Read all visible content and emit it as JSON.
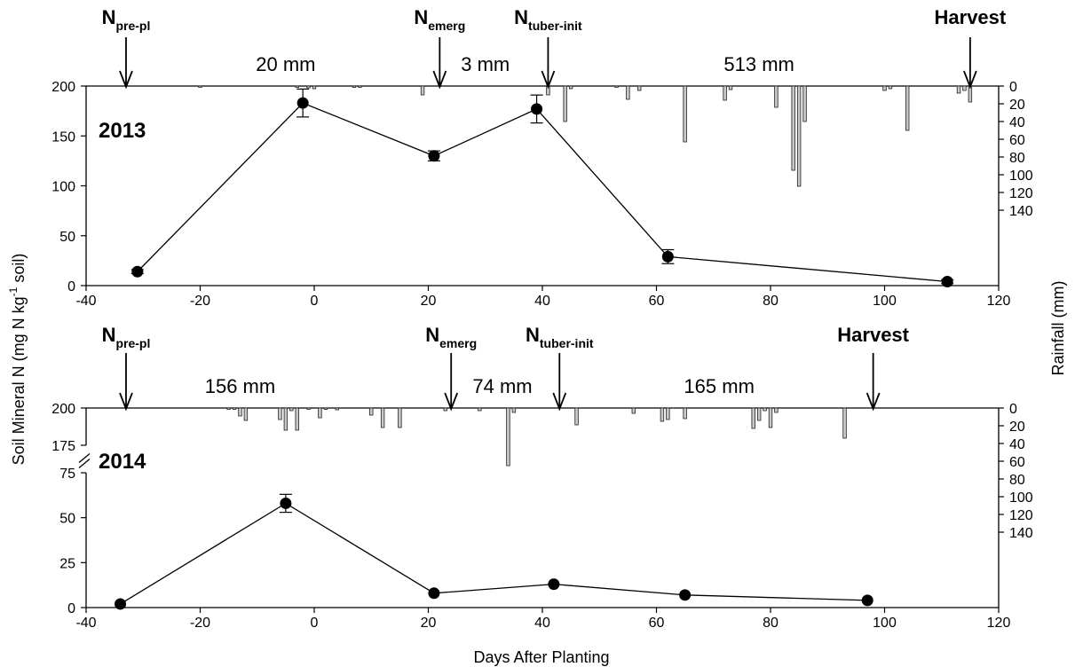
{
  "chart_data": {
    "type": "line",
    "xlabel": "Days After Planting",
    "ylabel_left": "Soil Mineral N (mg N kg-1 soil)",
    "ylabel_left_parts": [
      "Soil Mineral N (mg N kg",
      "-1",
      " soil)"
    ],
    "ylabel_right": "Rainfall (mm)",
    "x_ticks": [
      "-40",
      "-20",
      "0",
      "20",
      "40",
      "60",
      "80",
      "100",
      "120"
    ],
    "xlim": [
      -40,
      120
    ],
    "panels": [
      {
        "year": "2013",
        "ylim": [
          0,
          200
        ],
        "y_ticks": [
          "0",
          "50",
          "100",
          "150",
          "200"
        ],
        "rain_ylim": [
          0,
          150
        ],
        "rain_ticks": [
          "0",
          "20",
          "40",
          "60",
          "80",
          "100",
          "120",
          "140"
        ],
        "soil_n": [
          {
            "x": -31,
            "y": 14,
            "err": 2
          },
          {
            "x": -2,
            "y": 183,
            "err": 14
          },
          {
            "x": 21,
            "y": 130,
            "err": 5
          },
          {
            "x": 39,
            "y": 177,
            "err": 14
          },
          {
            "x": 62,
            "y": 29,
            "err": 7
          },
          {
            "x": 111,
            "y": 4,
            "err": 2
          }
        ],
        "rainfall": [
          {
            "x": -20,
            "mm": 1
          },
          {
            "x": -3,
            "mm": 1
          },
          {
            "x": -1,
            "mm": 2
          },
          {
            "x": 0,
            "mm": 3
          },
          {
            "x": 7,
            "mm": 1
          },
          {
            "x": 8,
            "mm": 1
          },
          {
            "x": 19,
            "mm": 10
          },
          {
            "x": 41,
            "mm": 10
          },
          {
            "x": 44,
            "mm": 40
          },
          {
            "x": 45,
            "mm": 3
          },
          {
            "x": 53,
            "mm": 1
          },
          {
            "x": 55,
            "mm": 15
          },
          {
            "x": 57,
            "mm": 5
          },
          {
            "x": 65,
            "mm": 63
          },
          {
            "x": 72,
            "mm": 16
          },
          {
            "x": 73,
            "mm": 4
          },
          {
            "x": 81,
            "mm": 24
          },
          {
            "x": 84,
            "mm": 95
          },
          {
            "x": 85,
            "mm": 113
          },
          {
            "x": 86,
            "mm": 40
          },
          {
            "x": 100,
            "mm": 5
          },
          {
            "x": 101,
            "mm": 3
          },
          {
            "x": 104,
            "mm": 50
          },
          {
            "x": 113,
            "mm": 8
          },
          {
            "x": 114,
            "mm": 5
          },
          {
            "x": 115,
            "mm": 18
          }
        ],
        "events": [
          {
            "base": "N",
            "sub": "pre-pl",
            "x": -33
          },
          {
            "base": "N",
            "sub": "emerg",
            "x": 22
          },
          {
            "base": "N",
            "sub": "tuber-init",
            "x": 41
          },
          {
            "base": "Harvest",
            "sub": "",
            "x": 115
          }
        ],
        "rain_totals": [
          {
            "label": "20 mm",
            "x": -5
          },
          {
            "label": "3 mm",
            "x": 30
          },
          {
            "label": "513 mm",
            "x": 78
          }
        ]
      },
      {
        "year": "2014",
        "ylim": [
          0,
          200
        ],
        "axis_break": [
          75,
          175
        ],
        "y_ticks": [
          "0",
          "25",
          "50",
          "75",
          "175",
          "200"
        ],
        "rain_ylim": [
          0,
          150
        ],
        "rain_ticks": [
          "0",
          "20",
          "40",
          "60",
          "80",
          "100",
          "120",
          "140"
        ],
        "soil_n": [
          {
            "x": -34,
            "y": 2,
            "err": 1
          },
          {
            "x": -5,
            "y": 58,
            "err": 5
          },
          {
            "x": 21,
            "y": 8,
            "err": 1
          },
          {
            "x": 42,
            "y": 13,
            "err": 1
          },
          {
            "x": 65,
            "y": 7,
            "err": 1
          },
          {
            "x": 97,
            "y": 4,
            "err": 1
          }
        ],
        "rainfall": [
          {
            "x": -15,
            "mm": 1
          },
          {
            "x": -14,
            "mm": 1
          },
          {
            "x": -13,
            "mm": 9
          },
          {
            "x": -12,
            "mm": 14
          },
          {
            "x": -6,
            "mm": 13
          },
          {
            "x": -5,
            "mm": 25
          },
          {
            "x": -4,
            "mm": 3
          },
          {
            "x": -3,
            "mm": 25
          },
          {
            "x": -1,
            "mm": 1
          },
          {
            "x": 1,
            "mm": 11
          },
          {
            "x": 2,
            "mm": 1
          },
          {
            "x": 4,
            "mm": 2
          },
          {
            "x": 10,
            "mm": 8
          },
          {
            "x": 12,
            "mm": 22
          },
          {
            "x": 15,
            "mm": 22
          },
          {
            "x": 23,
            "mm": 3
          },
          {
            "x": 29,
            "mm": 3
          },
          {
            "x": 34,
            "mm": 65
          },
          {
            "x": 35,
            "mm": 5
          },
          {
            "x": 46,
            "mm": 19
          },
          {
            "x": 56,
            "mm": 6
          },
          {
            "x": 61,
            "mm": 15
          },
          {
            "x": 62,
            "mm": 13
          },
          {
            "x": 65,
            "mm": 12
          },
          {
            "x": 77,
            "mm": 23
          },
          {
            "x": 78,
            "mm": 14
          },
          {
            "x": 79,
            "mm": 3
          },
          {
            "x": 80,
            "mm": 22
          },
          {
            "x": 81,
            "mm": 5
          },
          {
            "x": 93,
            "mm": 34
          }
        ],
        "events": [
          {
            "base": "N",
            "sub": "pre-pl",
            "x": -33
          },
          {
            "base": "N",
            "sub": "emerg",
            "x": 24
          },
          {
            "base": "N",
            "sub": "tuber-init",
            "x": 43
          },
          {
            "base": "Harvest",
            "sub": "",
            "x": 98
          }
        ],
        "rain_totals": [
          {
            "label": "156 mm",
            "x": -13
          },
          {
            "label": "74 mm",
            "x": 33
          },
          {
            "label": "165 mm",
            "x": 71
          }
        ]
      }
    ]
  }
}
